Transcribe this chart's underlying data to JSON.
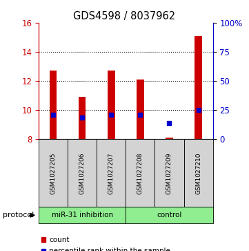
{
  "title": "GDS4598 / 8037962",
  "samples": [
    "GSM1027205",
    "GSM1027206",
    "GSM1027207",
    "GSM1027208",
    "GSM1027209",
    "GSM1027210"
  ],
  "bar_bottom": 8.0,
  "bar_tops": [
    12.7,
    10.9,
    12.7,
    12.1,
    8.1,
    15.1
  ],
  "percentile_values": [
    9.7,
    9.5,
    9.7,
    9.7,
    9.1,
    10.0
  ],
  "ylim_left": [
    8,
    16
  ],
  "ylim_right": [
    0,
    100
  ],
  "yticks_left": [
    8,
    10,
    12,
    14,
    16
  ],
  "yticks_right": [
    0,
    25,
    50,
    75,
    100
  ],
  "ytick_labels_right": [
    "0",
    "25",
    "50",
    "75",
    "100%"
  ],
  "bar_color": "#cc0000",
  "percentile_color": "#0000cc",
  "protocol_labels": [
    "miR-31 inhibition",
    "control"
  ],
  "protocol_colors": [
    "#90ee90",
    "#90ee90"
  ],
  "protocol_label": "protocol",
  "legend_count_label": "count",
  "legend_percentile_label": "percentile rank within the sample",
  "sample_box_color": "#d3d3d3",
  "bar_width": 0.25
}
